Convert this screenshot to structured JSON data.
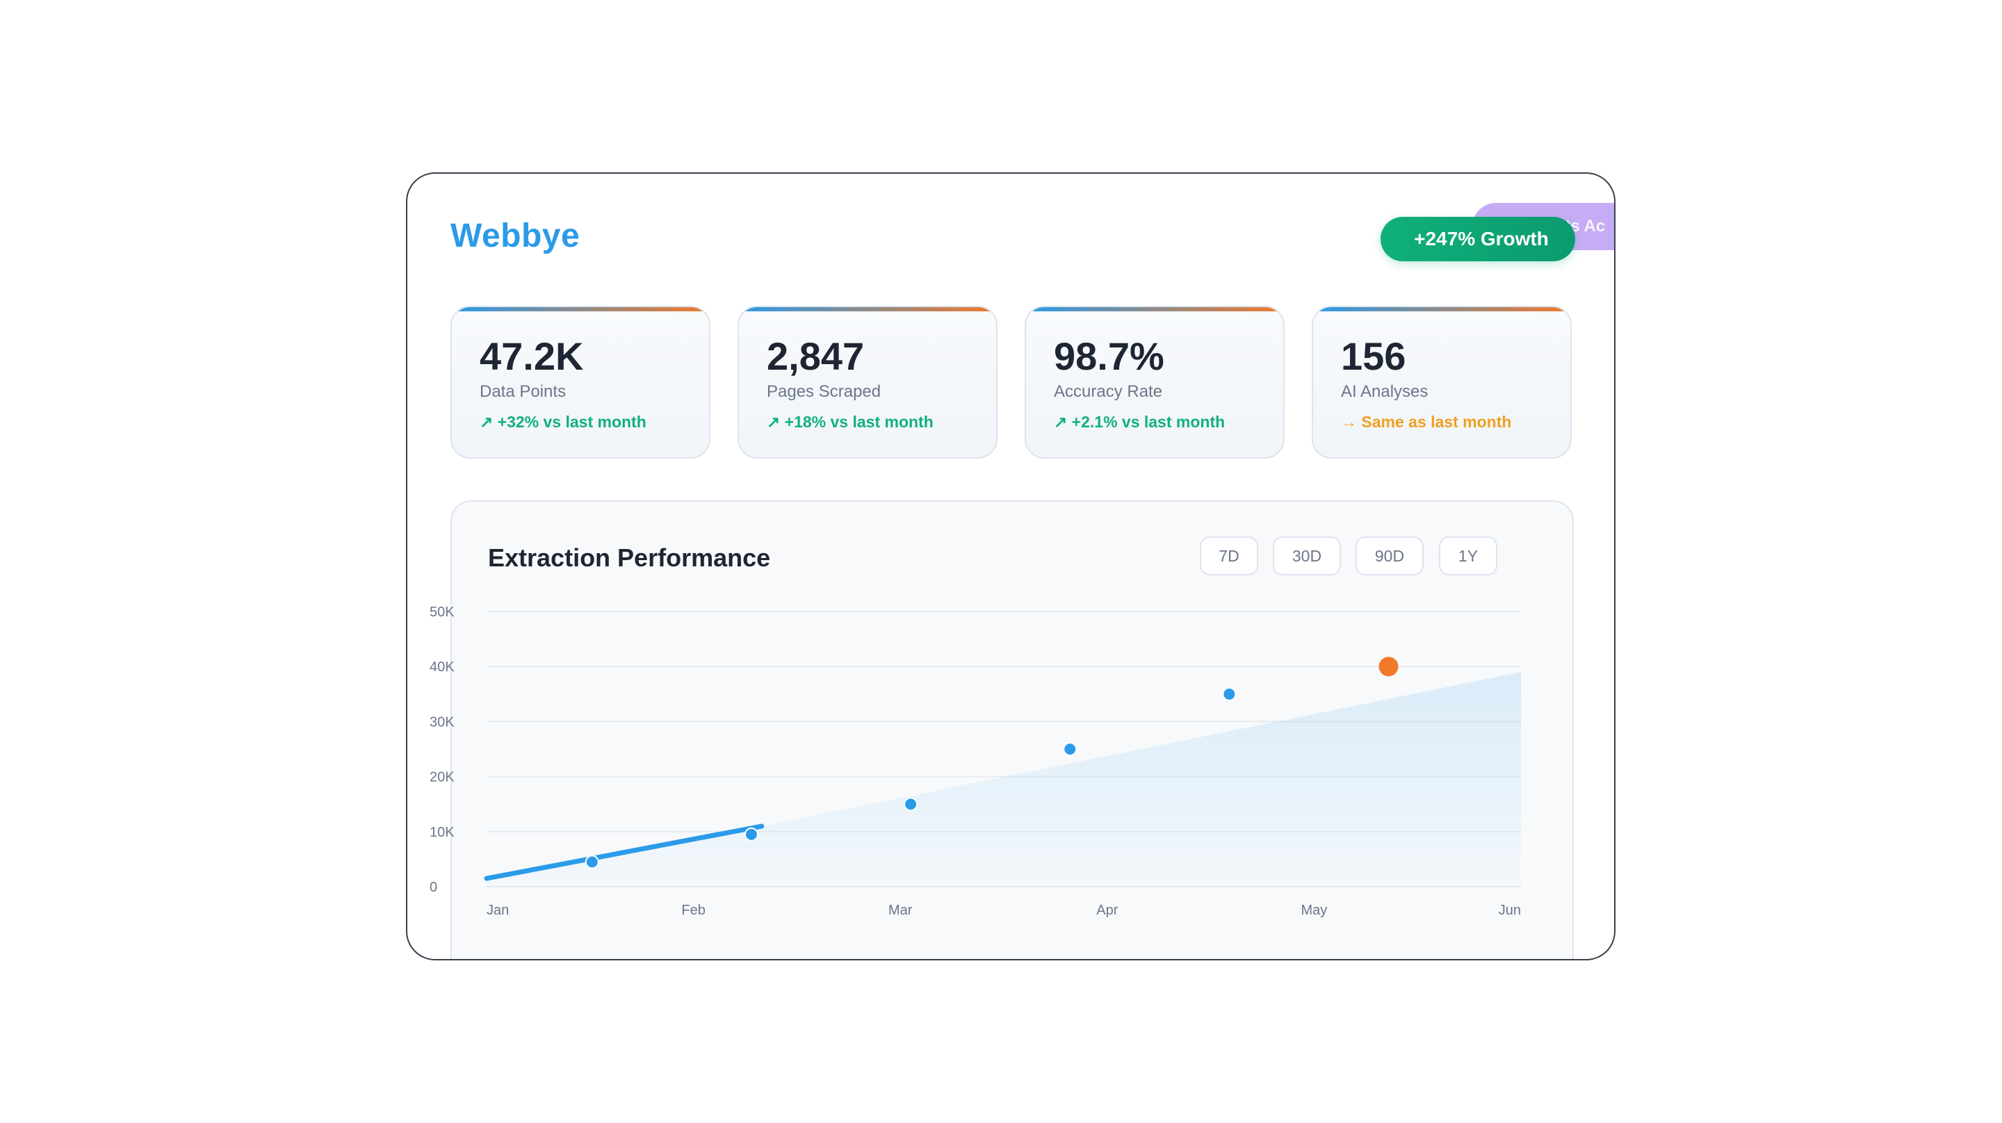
{
  "brand": "Webbye",
  "badges": {
    "growth": {
      "icon": "chart-up-icon",
      "glyph": "",
      "label": "+247% Growth"
    },
    "ai": {
      "icon": "sparkle-icon",
      "glyph": "",
      "label": "AI Insights Ac"
    }
  },
  "stats": [
    {
      "value": "47.2K",
      "label": "Data Points",
      "trend": "↗ +32% vs last month",
      "trend_color": "#10b07c"
    },
    {
      "value": "2,847",
      "label": "Pages Scraped",
      "trend": "↗ +18% vs last month",
      "trend_color": "#10b07c"
    },
    {
      "value": "98.7%",
      "label": "Accuracy Rate",
      "trend": "↗ +2.1% vs last month",
      "trend_color": "#10b07c"
    },
    {
      "value": "156",
      "label": "AI Analyses",
      "trend": "→ Same as last month",
      "trend_color": "#f0a020"
    }
  ],
  "panel": {
    "title": "Extraction Performance",
    "ranges": [
      "7D",
      "30D",
      "90D",
      "1Y"
    ],
    "active_range": "30D"
  },
  "colors": {
    "accent": "#2b9be9",
    "highlight": "#f07a2a",
    "positive": "#10b07c",
    "neutral": "#f0a020"
  },
  "chart_data": {
    "type": "line",
    "x_ticks": [
      "Jan",
      "Feb",
      "Mar",
      "Apr",
      "May",
      "Jun"
    ],
    "y_ticks": [
      "0",
      "10K",
      "20K",
      "30K",
      "40K",
      "50K"
    ],
    "ylim": [
      0,
      50000
    ],
    "xlim": [
      0,
      5
    ],
    "line_segment": [
      {
        "x": 0,
        "y": 1500
      },
      {
        "x": 1.33,
        "y": 11000
      }
    ],
    "points": [
      {
        "x": 0.51,
        "y": 4500,
        "highlight": false
      },
      {
        "x": 1.28,
        "y": 9500,
        "highlight": false
      },
      {
        "x": 2.05,
        "y": 15000,
        "highlight": false
      },
      {
        "x": 2.82,
        "y": 25000,
        "highlight": false
      },
      {
        "x": 3.59,
        "y": 35000,
        "highlight": false
      },
      {
        "x": 4.36,
        "y": 40000,
        "highlight": true
      }
    ],
    "area_end": {
      "x": 5,
      "y": 39000
    },
    "grid": true
  }
}
